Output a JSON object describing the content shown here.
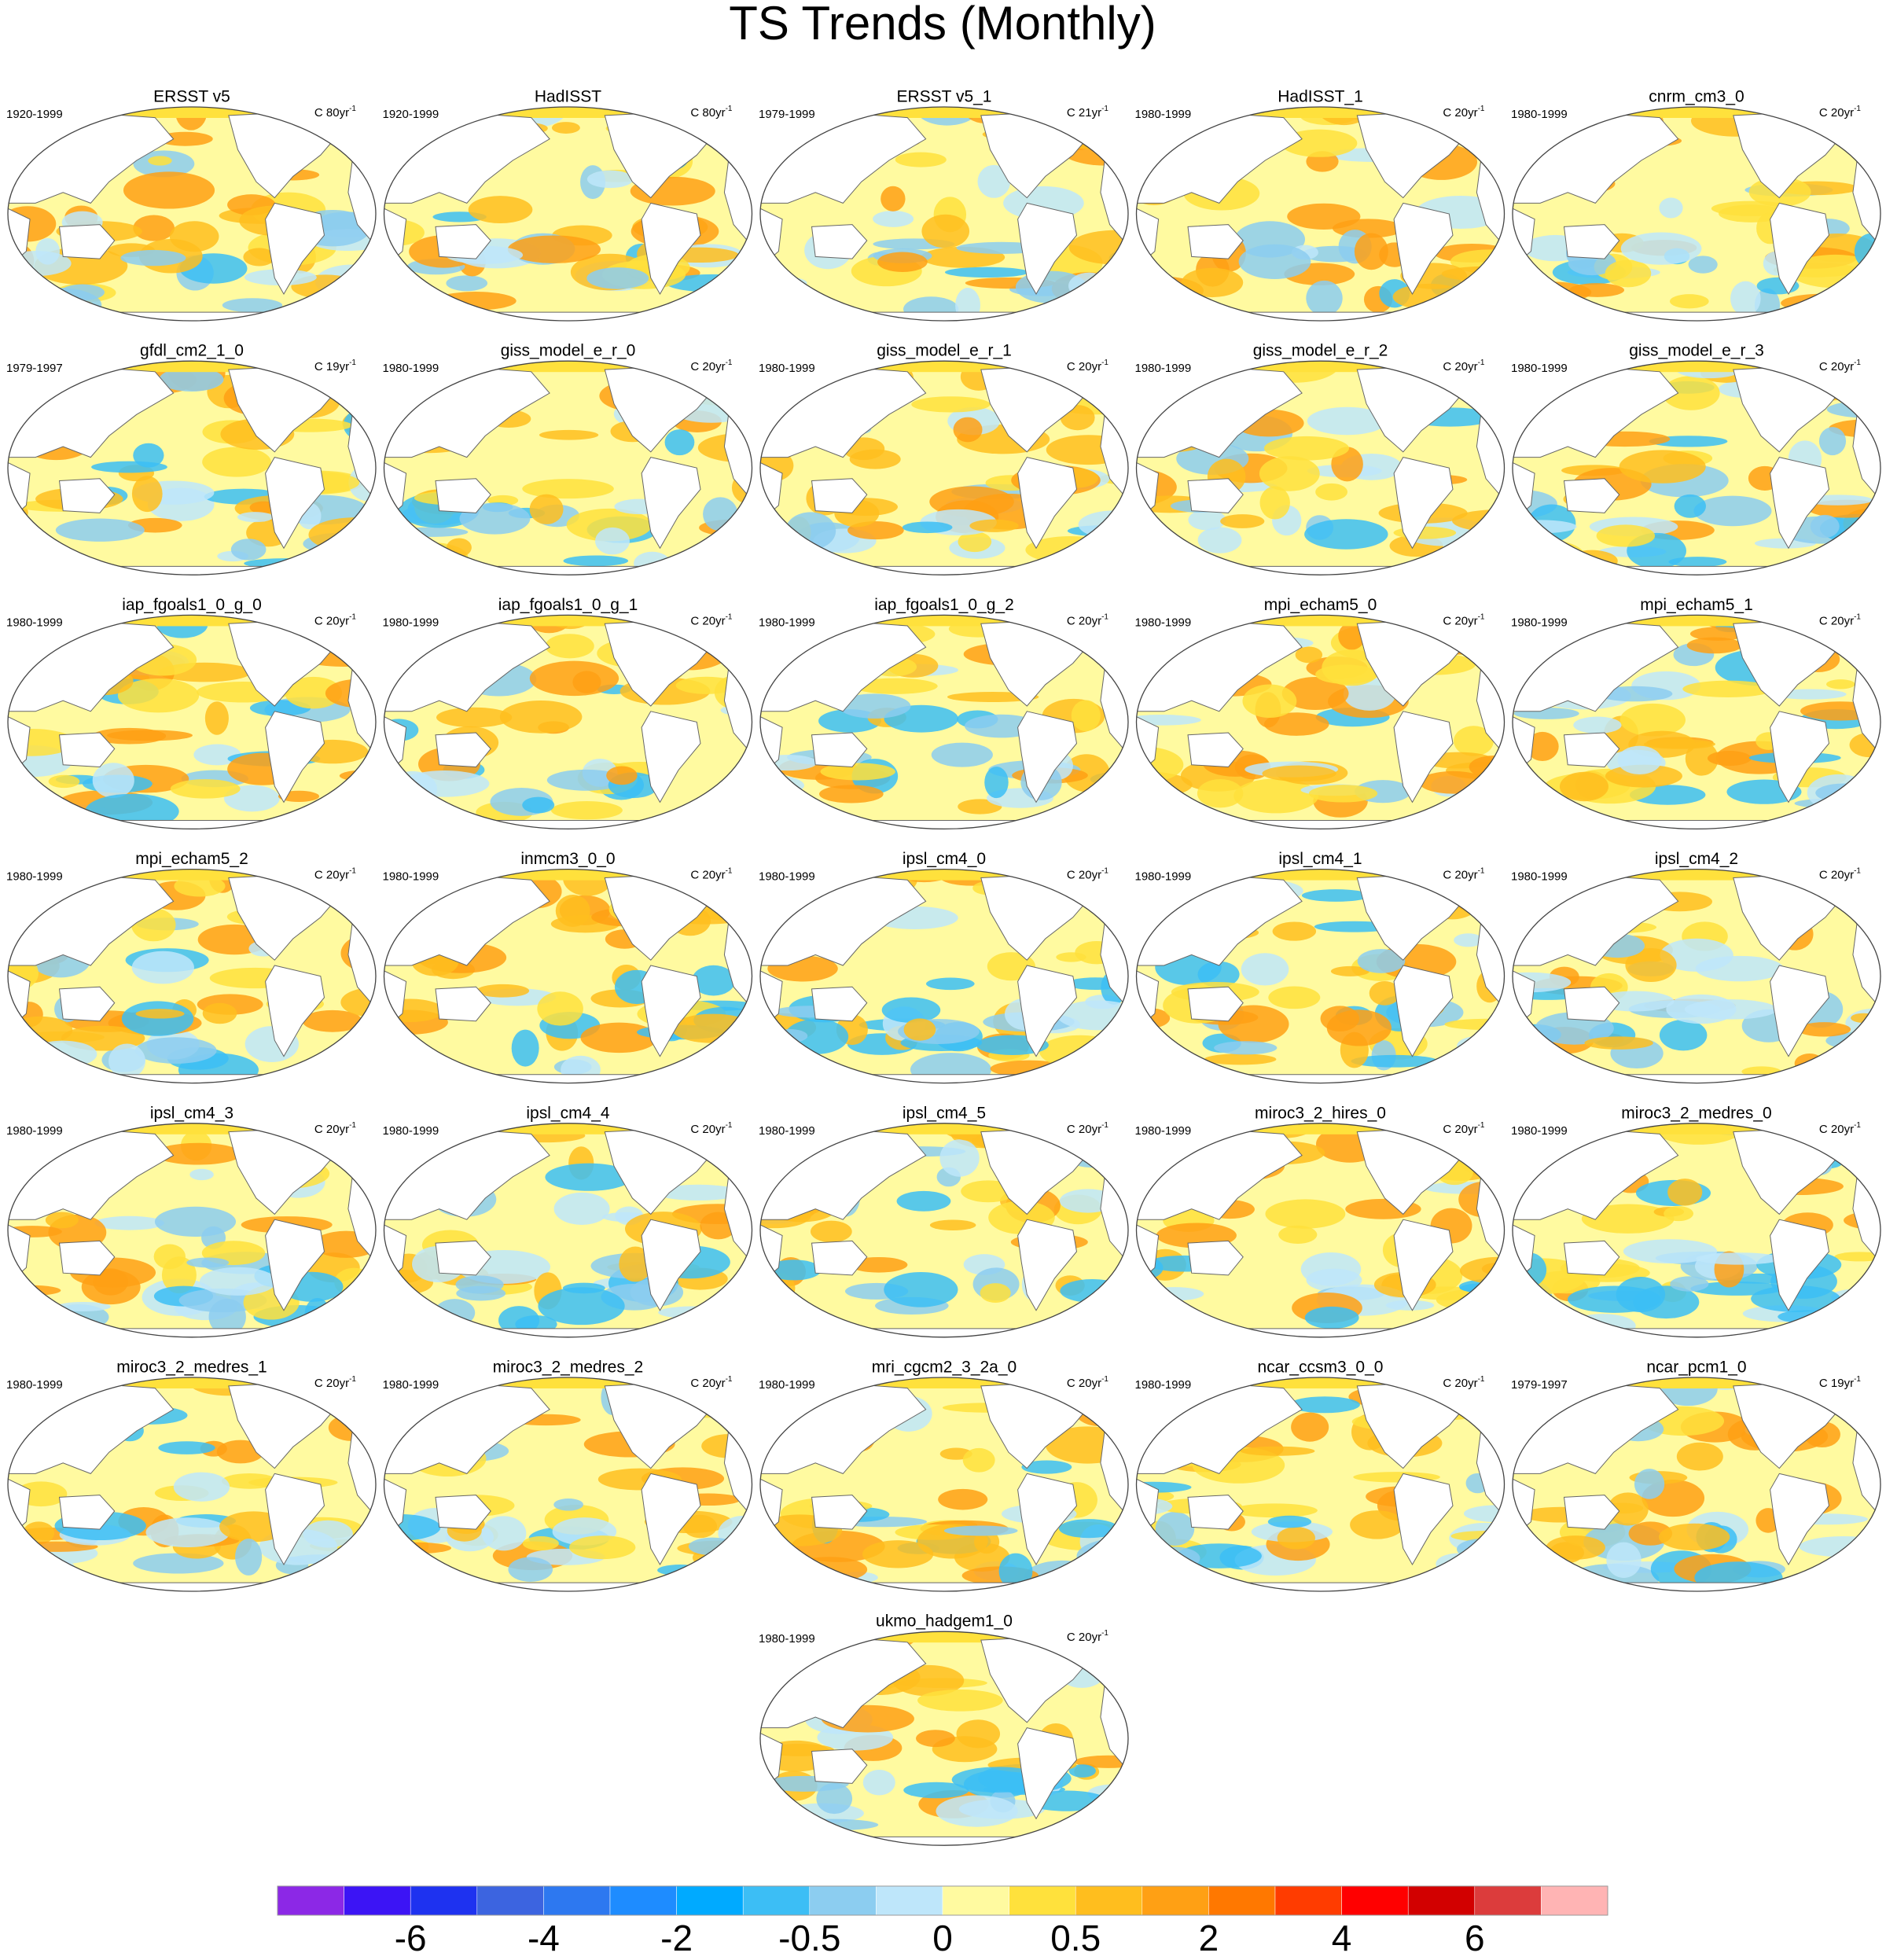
{
  "title": "TS Trends (Monthly)",
  "units_superscript": "-1",
  "panels": [
    {
      "title": "ERSST v5",
      "period": "1920-1999",
      "units": "C 80yr"
    },
    {
      "title": "HadISST",
      "period": "1920-1999",
      "units": "C 80yr"
    },
    {
      "title": "ERSST v5_1",
      "period": "1979-1999",
      "units": "C 21yr"
    },
    {
      "title": "HadISST_1",
      "period": "1980-1999",
      "units": "C 20yr"
    },
    {
      "title": "cnrm_cm3_0",
      "period": "1980-1999",
      "units": "C 20yr"
    },
    {
      "title": "gfdl_cm2_1_0",
      "period": "1979-1997",
      "units": "C 19yr"
    },
    {
      "title": "giss_model_e_r_0",
      "period": "1980-1999",
      "units": "C 20yr"
    },
    {
      "title": "giss_model_e_r_1",
      "period": "1980-1999",
      "units": "C 20yr"
    },
    {
      "title": "giss_model_e_r_2",
      "period": "1980-1999",
      "units": "C 20yr"
    },
    {
      "title": "giss_model_e_r_3",
      "period": "1980-1999",
      "units": "C 20yr"
    },
    {
      "title": "iap_fgoals1_0_g_0",
      "period": "1980-1999",
      "units": "C 20yr"
    },
    {
      "title": "iap_fgoals1_0_g_1",
      "period": "1980-1999",
      "units": "C 20yr"
    },
    {
      "title": "iap_fgoals1_0_g_2",
      "period": "1980-1999",
      "units": "C 20yr"
    },
    {
      "title": "mpi_echam5_0",
      "period": "1980-1999",
      "units": "C 20yr"
    },
    {
      "title": "mpi_echam5_1",
      "period": "1980-1999",
      "units": "C 20yr"
    },
    {
      "title": "mpi_echam5_2",
      "period": "1980-1999",
      "units": "C 20yr"
    },
    {
      "title": "inmcm3_0_0",
      "period": "1980-1999",
      "units": "C 20yr"
    },
    {
      "title": "ipsl_cm4_0",
      "period": "1980-1999",
      "units": "C 20yr"
    },
    {
      "title": "ipsl_cm4_1",
      "period": "1980-1999",
      "units": "C 20yr"
    },
    {
      "title": "ipsl_cm4_2",
      "period": "1980-1999",
      "units": "C 20yr"
    },
    {
      "title": "ipsl_cm4_3",
      "period": "1980-1999",
      "units": "C 20yr"
    },
    {
      "title": "ipsl_cm4_4",
      "period": "1980-1999",
      "units": "C 20yr"
    },
    {
      "title": "ipsl_cm4_5",
      "period": "1980-1999",
      "units": "C 20yr"
    },
    {
      "title": "miroc3_2_hires_0",
      "period": "1980-1999",
      "units": "C 20yr"
    },
    {
      "title": "miroc3_2_medres_0",
      "period": "1980-1999",
      "units": "C 20yr"
    },
    {
      "title": "miroc3_2_medres_1",
      "period": "1980-1999",
      "units": "C 20yr"
    },
    {
      "title": "miroc3_2_medres_2",
      "period": "1980-1999",
      "units": "C 20yr"
    },
    {
      "title": "mri_cgcm2_3_2a_0",
      "period": "1980-1999",
      "units": "C 20yr"
    },
    {
      "title": "ncar_ccsm3_0_0",
      "period": "1980-1999",
      "units": "C 20yr"
    },
    {
      "title": "ncar_pcm1_0",
      "period": "1979-1997",
      "units": "C 19yr"
    },
    {
      "title": "ukmo_hadgem1_0",
      "period": "1980-1999",
      "units": "C 20yr"
    }
  ],
  "colorbar": {
    "colors": [
      "#8c28e6",
      "#3c14f5",
      "#1e32f0",
      "#3c64e0",
      "#2d78f0",
      "#1e8cff",
      "#00aaff",
      "#3cbef5",
      "#8ccdf0",
      "#bee6fa",
      "#fffaa0",
      "#ffe13c",
      "#ffbe1e",
      "#ffa014",
      "#ff7800",
      "#ff3c00",
      "#ff0000",
      "#d20000",
      "#dc3c3c",
      "#ffb4b4"
    ],
    "labels": [
      -6,
      -4,
      -2,
      -0.5,
      0,
      0.5,
      2,
      4,
      6
    ]
  }
}
